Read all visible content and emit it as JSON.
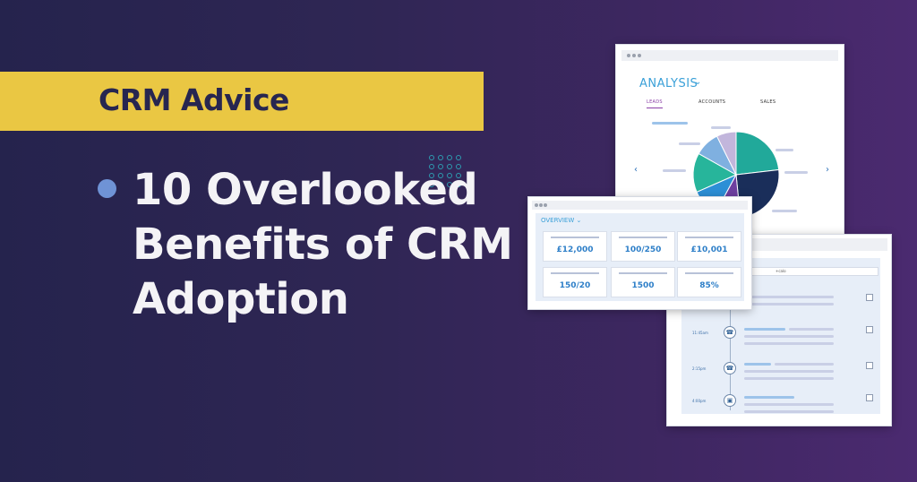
{
  "banner": {
    "label": "CRM Advice",
    "accent": "#eac743",
    "pattern_icon": "dot-grid-icon"
  },
  "headline": {
    "lines": [
      "10 Overlooked",
      "Benefits of CRM",
      "Adoption"
    ],
    "bullet_color": "#6f93d6"
  },
  "analysis_window": {
    "title": "ANALYSIS",
    "tabs": [
      "LEADS",
      "ACCOUNTS",
      "SALES"
    ],
    "active_tab": "LEADS",
    "chart_data": {
      "type": "pie",
      "values": [
        22,
        24,
        9,
        10,
        14,
        9,
        7
      ],
      "colors": [
        "#21a99a",
        "#1a2e5a",
        "#6e3fa0",
        "#2d8fd6",
        "#27b59b",
        "#7fb0e0",
        "#c2b6dc"
      ]
    }
  },
  "overview_window": {
    "title": "OVERVIEW",
    "cards": [
      "£12,000",
      "100/250",
      "£10,001",
      "150/20",
      "1500",
      "85%"
    ]
  },
  "timeline_window": {
    "input_text": "+calo",
    "items": [
      {
        "time": "",
        "icon": ""
      },
      {
        "time": "11:45am",
        "icon": "phone-icon"
      },
      {
        "time": "2:15pm",
        "icon": "phone-icon"
      },
      {
        "time": "4:00pm",
        "icon": "calendar-icon"
      }
    ]
  }
}
